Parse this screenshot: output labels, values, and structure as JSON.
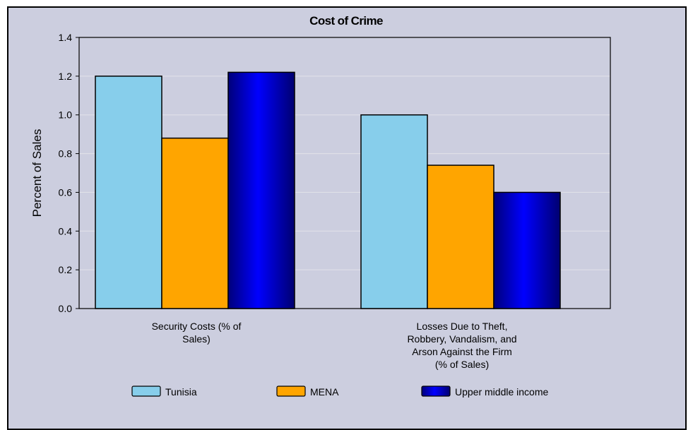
{
  "chart_data": {
    "type": "bar",
    "title": "Cost of Crime",
    "ylabel": "Percent of Sales",
    "xlabel": "",
    "ylim": [
      0,
      1.4
    ],
    "yticks": [
      "0.0",
      "0.2",
      "0.4",
      "0.6",
      "0.8",
      "1.0",
      "1.2",
      "1.4"
    ],
    "categories": [
      [
        "Security Costs (% of",
        "Sales)"
      ],
      [
        "Losses Due to Theft,",
        "Robbery, Vandalism, and",
        "Arson Against the Firm",
        "(% of Sales)"
      ]
    ],
    "series": [
      {
        "name": "Tunisia",
        "values": [
          1.2,
          1.0
        ],
        "color": "#87ceeb"
      },
      {
        "name": "MENA",
        "values": [
          0.88,
          0.74
        ],
        "color": "#ffa500"
      },
      {
        "name": "Upper middle income",
        "values": [
          1.22,
          0.6
        ],
        "color": "#0000c8"
      }
    ],
    "grid": true,
    "legend": "bottom"
  }
}
